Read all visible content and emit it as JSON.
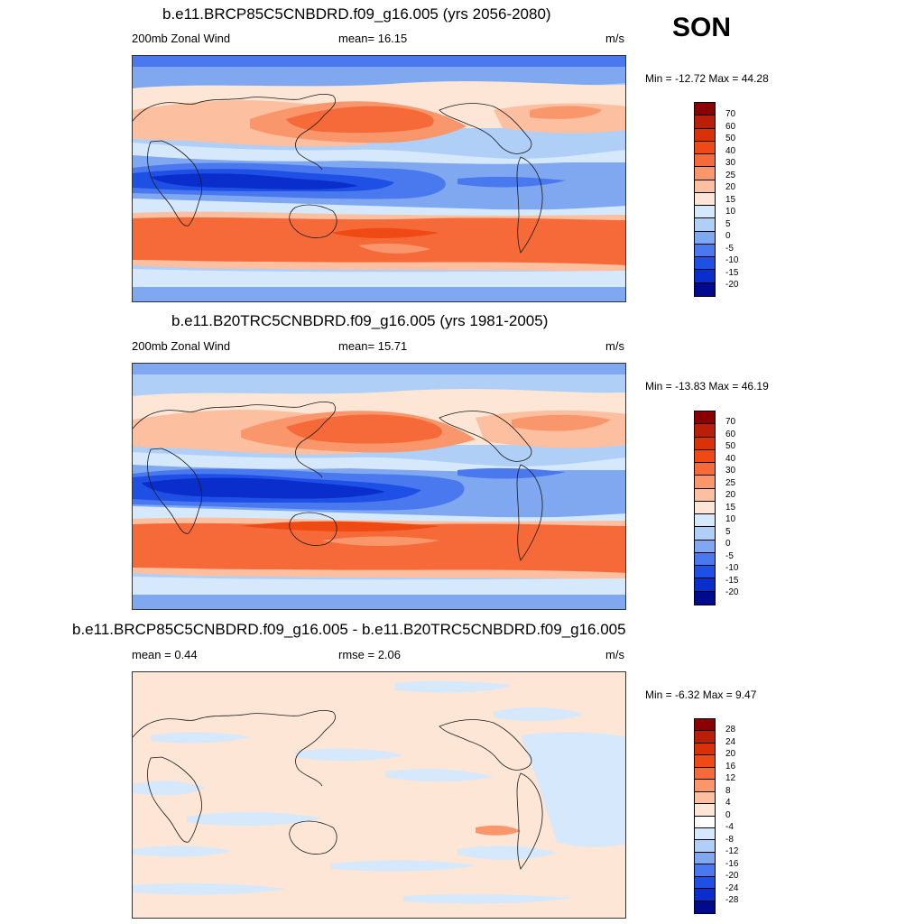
{
  "season": "SON",
  "panels": [
    {
      "title": "b.e11.BRCP85C5CNBDRD.f09_g16.005 (yrs 2056-2080)",
      "left_label": "200mb Zonal Wind",
      "center_label": "mean=  16.15",
      "units": "m/s",
      "minmax": "Min = -12.72 Max =  44.28",
      "colorbar_labels": [
        "70",
        "60",
        "50",
        "40",
        "30",
        "25",
        "20",
        "15",
        "10",
        "5",
        "0",
        "-5",
        "-10",
        "-15",
        "-20"
      ]
    },
    {
      "title": "b.e11.B20TRC5CNBDRD.f09_g16.005 (yrs 1981-2005)",
      "left_label": "200mb Zonal Wind",
      "center_label": "mean=  15.71",
      "units": "m/s",
      "minmax": "Min = -13.83 Max =  46.19",
      "colorbar_labels": [
        "70",
        "60",
        "50",
        "40",
        "30",
        "25",
        "20",
        "15",
        "10",
        "5",
        "0",
        "-5",
        "-10",
        "-15",
        "-20"
      ]
    },
    {
      "title": "b.e11.BRCP85C5CNBDRD.f09_g16.005 - b.e11.B20TRC5CNBDRD.f09_g16.005",
      "left_label": "mean =   0.44",
      "center_label": "rmse =   2.06",
      "units": "m/s",
      "minmax": "Min =  -6.32 Max =   9.47",
      "colorbar_labels": [
        "28",
        "24",
        "20",
        "16",
        "12",
        "8",
        "4",
        "0",
        "-4",
        "-8",
        "-12",
        "-16",
        "-20",
        "-24",
        "-28"
      ]
    }
  ],
  "colors": {
    "abs_scale": [
      "#8b0000",
      "#b81e08",
      "#d93208",
      "#f04a14",
      "#f56a38",
      "#f9966c",
      "#fcbfa0",
      "#fde6d6",
      "#d6e8fb",
      "#b0cff6",
      "#7fa8f0",
      "#4a78ee",
      "#1f50e6",
      "#0a2ecc",
      "#000a8c"
    ],
    "diff_scale": [
      "#8b0000",
      "#b81e08",
      "#d93208",
      "#f04a14",
      "#f56a38",
      "#f9966c",
      "#fcbfa0",
      "#fde6d6",
      "#ffffff",
      "#d6e8fb",
      "#b0cff6",
      "#7fa8f0",
      "#4a78ee",
      "#1f50e6",
      "#0a2ecc",
      "#000a8c"
    ]
  },
  "chart_data": [
    {
      "type": "heatmap",
      "title": "b.e11.BRCP85C5CNBDRD.f09_g16.005 (yrs 2056-2080)",
      "variable": "200mb Zonal Wind",
      "units": "m/s",
      "mean": 16.15,
      "min": -12.72,
      "max": 44.28,
      "contour_levels": [
        -20,
        -15,
        -10,
        -5,
        0,
        5,
        10,
        15,
        20,
        25,
        30,
        40,
        50,
        60,
        70
      ]
    },
    {
      "type": "heatmap",
      "title": "b.e11.B20TRC5CNBDRD.f09_g16.005 (yrs 1981-2005)",
      "variable": "200mb Zonal Wind",
      "units": "m/s",
      "mean": 15.71,
      "min": -13.83,
      "max": 46.19,
      "contour_levels": [
        -20,
        -15,
        -10,
        -5,
        0,
        5,
        10,
        15,
        20,
        25,
        30,
        40,
        50,
        60,
        70
      ]
    },
    {
      "type": "heatmap",
      "title": "b.e11.BRCP85C5CNBDRD.f09_g16.005 - b.e11.B20TRC5CNBDRD.f09_g16.005",
      "units": "m/s",
      "mean": 0.44,
      "rmse": 2.06,
      "min": -6.32,
      "max": 9.47,
      "contour_levels": [
        -28,
        -24,
        -20,
        -16,
        -12,
        -8,
        -4,
        0,
        4,
        8,
        12,
        16,
        20,
        24,
        28
      ]
    }
  ]
}
